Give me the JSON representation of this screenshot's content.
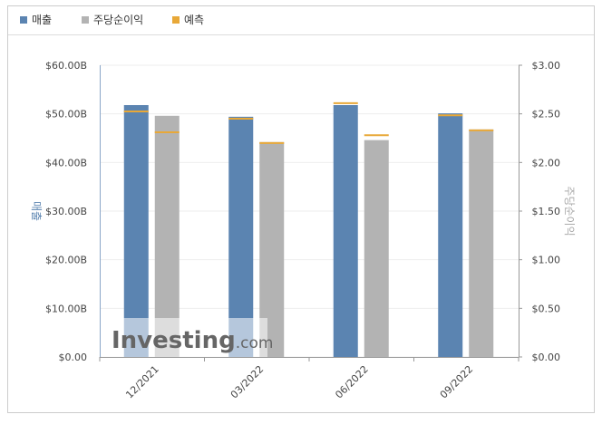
{
  "chart_data": {
    "type": "bar",
    "categories": [
      "12/2021",
      "03/2022",
      "06/2022",
      "09/2022"
    ],
    "series": [
      {
        "name": "매출",
        "color": "#5b84b1",
        "values": [
          51.8,
          49.4,
          51.8,
          50.1
        ]
      },
      {
        "name": "주당순이익",
        "color": "#b3b3b3",
        "axis": "y2",
        "values": [
          2.48,
          2.21,
          2.23,
          2.34
        ]
      }
    ],
    "forecast": {
      "name": "예측",
      "color": "#e8a838",
      "values": [
        50.5,
        49.0,
        52.2,
        49.7
      ],
      "y2_values": [
        2.31,
        2.2,
        2.28,
        2.33
      ]
    },
    "ylabel": "매출",
    "y2label": "주당순이익",
    "ylim": [
      0,
      60
    ],
    "yticks": [
      {
        "value": 0,
        "label": "$0.00"
      },
      {
        "value": 10,
        "label": "$10.00B"
      },
      {
        "value": 20,
        "label": "$20.00B"
      },
      {
        "value": 30,
        "label": "$30.00B"
      },
      {
        "value": 40,
        "label": "$40.00B"
      },
      {
        "value": 50,
        "label": "$50.00B"
      },
      {
        "value": 60,
        "label": "$60.00B"
      }
    ],
    "y2lim": [
      0,
      3
    ],
    "y2ticks": [
      {
        "value": 0,
        "label": "$0.00"
      },
      {
        "value": 0.5,
        "label": "$0.50"
      },
      {
        "value": 1,
        "label": "$1.00"
      },
      {
        "value": 1.5,
        "label": "$1.50"
      },
      {
        "value": 2,
        "label": "$2.00"
      },
      {
        "value": 2.5,
        "label": "$2.50"
      },
      {
        "value": 3,
        "label": "$3.00"
      }
    ],
    "grid": true,
    "watermark": [
      "Investing",
      ".com"
    ]
  }
}
